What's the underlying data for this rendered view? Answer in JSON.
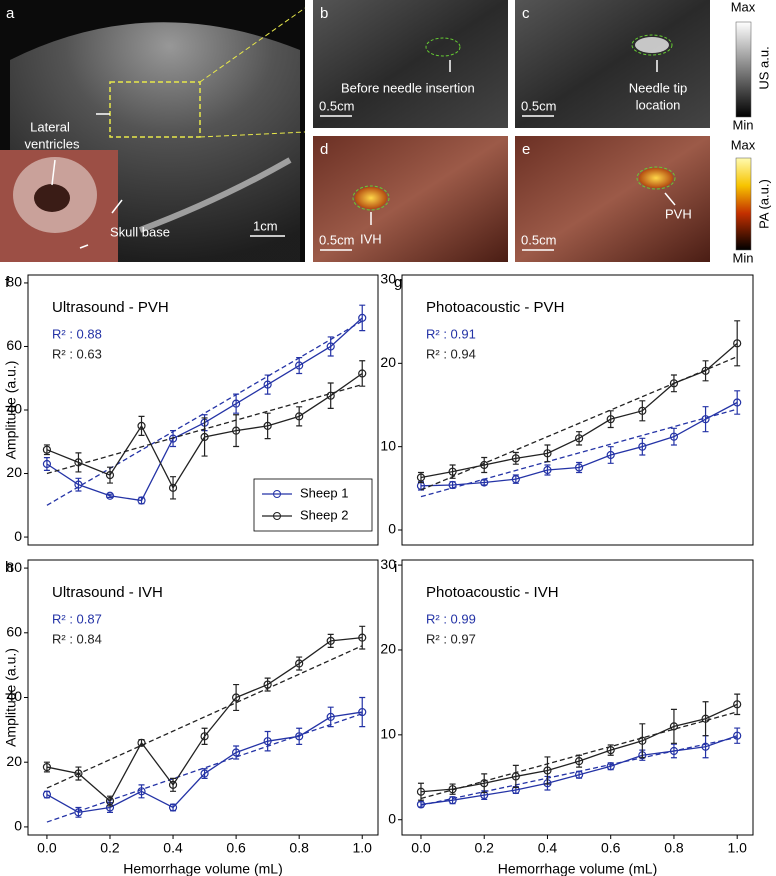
{
  "image_panels": {
    "a": {
      "label": "a",
      "lateral_ventricles": [
        "Lateral",
        "ventricles"
      ],
      "skull_base": "Skull base",
      "scale": "1cm"
    },
    "b": {
      "label": "b",
      "note": "Before needle insertion",
      "scale": "0.5cm"
    },
    "c": {
      "label": "c",
      "note": [
        "Needle tip",
        "location"
      ],
      "scale": "0.5cm"
    },
    "d": {
      "label": "d",
      "note": "IVH",
      "scale": "0.5cm"
    },
    "e": {
      "label": "e",
      "note": "PVH",
      "scale": "0.5cm"
    }
  },
  "colorbars": [
    {
      "max": "Max",
      "min": "Min",
      "label": "US a.u."
    },
    {
      "max": "Max",
      "min": "Min",
      "label": "PA (a.u.)"
    }
  ],
  "chart_data": [
    {
      "type": "line",
      "panel": "f",
      "title": "Ultrasound - PVH",
      "ylabel": "Amplitude (a.u.)",
      "x": [
        0,
        0.1,
        0.2,
        0.3,
        0.4,
        0.5,
        0.6,
        0.7,
        0.8,
        0.9,
        1.0
      ],
      "xlim": [
        -0.06,
        1.05
      ],
      "ylim": [
        -2.5,
        82.5
      ],
      "yticks": [
        0,
        20,
        40,
        60,
        80
      ],
      "legend": "lower right",
      "series": [
        {
          "name": "Sheep 1",
          "color": "#2433a6",
          "r2_label": "R² : 0.88",
          "values": [
            23,
            16.5,
            13,
            11.5,
            31,
            36,
            42,
            48,
            54,
            60,
            69
          ],
          "errors": [
            2,
            2,
            0.5,
            1,
            2.5,
            2.5,
            3,
            3,
            2.5,
            3,
            4
          ],
          "fit": [
            10,
            68
          ]
        },
        {
          "name": "Sheep 2",
          "color": "#222222",
          "r2_label": "R² : 0.63",
          "values": [
            27.5,
            23.5,
            19.5,
            35,
            15.5,
            31.5,
            33.5,
            35,
            38,
            44.5,
            51.5
          ],
          "errors": [
            1.5,
            3,
            2.5,
            3,
            3.5,
            6,
            5,
            4,
            3,
            4,
            4
          ],
          "fit": [
            20,
            48
          ]
        }
      ]
    },
    {
      "type": "line",
      "panel": "g",
      "title": "Photoacoustic - PVH",
      "x": [
        0,
        0.1,
        0.2,
        0.3,
        0.4,
        0.5,
        0.6,
        0.7,
        0.8,
        0.9,
        1.0
      ],
      "xlim": [
        -0.06,
        1.05
      ],
      "ylim": [
        -1.8,
        30.6
      ],
      "yticks": [
        0,
        10,
        20,
        30
      ],
      "series": [
        {
          "color": "#2433a6",
          "r2_label": "R² : 0.91",
          "values": [
            5.3,
            5.4,
            5.7,
            6.1,
            7.2,
            7.5,
            9,
            10,
            11.2,
            13.3,
            15.3
          ],
          "errors": [
            0.5,
            0.4,
            0.3,
            0.5,
            0.6,
            0.6,
            1,
            1,
            1,
            1.5,
            1.4
          ],
          "fit": [
            4,
            14.5
          ]
        },
        {
          "color": "#222222",
          "r2_label": "R² : 0.94",
          "values": [
            6.3,
            7,
            7.8,
            8.6,
            9.2,
            11,
            13.3,
            14.3,
            17.6,
            19.1,
            22.4
          ],
          "errors": [
            0.6,
            0.8,
            0.9,
            0.7,
            1,
            0.8,
            1,
            1.2,
            1,
            1.2,
            2.7
          ],
          "fit": [
            4.8,
            20.8
          ]
        }
      ]
    },
    {
      "type": "line",
      "panel": "h",
      "title": "Ultrasound - IVH",
      "ylabel": "Amplitude (a.u.)",
      "xlabel": "Hemorrhage volume (mL)",
      "x": [
        0,
        0.1,
        0.2,
        0.3,
        0.4,
        0.5,
        0.6,
        0.7,
        0.8,
        0.9,
        1.0
      ],
      "xlim": [
        -0.06,
        1.05
      ],
      "xticks": [
        {
          "value": 0,
          "label": "0.0"
        },
        0.2,
        0.4,
        0.6,
        0.8,
        {
          "value": 1,
          "label": "1.0"
        }
      ],
      "ylim": [
        -2.5,
        82.5
      ],
      "yticks": [
        0,
        20,
        40,
        60,
        80
      ],
      "series": [
        {
          "color": "#2433a6",
          "r2_label": "R² : 0.87",
          "values": [
            10,
            4.5,
            6,
            11,
            6,
            16.5,
            23,
            26.5,
            28,
            34,
            35.5
          ],
          "errors": [
            1,
            1.5,
            1.5,
            2,
            1,
            1.5,
            2,
            3,
            2.5,
            3,
            4.5
          ],
          "fit": [
            1.5,
            35
          ]
        },
        {
          "color": "#222222",
          "r2_label": "R² : 0.84",
          "values": [
            18.5,
            16.5,
            8,
            26,
            13,
            28,
            40,
            44,
            50.5,
            57.5,
            58.5
          ],
          "errors": [
            1.5,
            2,
            1.5,
            1,
            2,
            2.5,
            4,
            2,
            2,
            2,
            3.5
          ],
          "fit": [
            12,
            56
          ]
        }
      ]
    },
    {
      "type": "line",
      "panel": "i",
      "title": "Photoacoustic - IVH",
      "xlabel": "Hemorrhage volume (mL)",
      "x": [
        0,
        0.1,
        0.2,
        0.3,
        0.4,
        0.5,
        0.6,
        0.7,
        0.8,
        0.9,
        1.0
      ],
      "xlim": [
        -0.06,
        1.05
      ],
      "xticks": [
        {
          "value": 0,
          "label": "0.0"
        },
        0.2,
        0.4,
        0.6,
        0.8,
        {
          "value": 1,
          "label": "1.0"
        }
      ],
      "ylim": [
        -1.8,
        30.6
      ],
      "yticks": [
        0,
        10,
        20,
        30
      ],
      "series": [
        {
          "color": "#2433a6",
          "r2_label": "R² : 0.99",
          "values": [
            1.8,
            2.3,
            2.9,
            3.5,
            4.3,
            5.3,
            6.3,
            7.6,
            8.1,
            8.6,
            9.9
          ],
          "errors": [
            0.3,
            0.4,
            0.5,
            0.4,
            0.8,
            0.4,
            0.4,
            0.6,
            0.8,
            1.3,
            0.9
          ],
          "fit": [
            1.7,
            9.7
          ]
        },
        {
          "color": "#222222",
          "r2_label": "R² : 0.97",
          "values": [
            3.3,
            3.6,
            4.3,
            5.1,
            5.8,
            6.9,
            8.2,
            9.3,
            11,
            11.9,
            13.6
          ],
          "errors": [
            1,
            0.6,
            1.1,
            1.3,
            1.6,
            0.7,
            0.6,
            2,
            2,
            2,
            1.2
          ],
          "fit": [
            2.5,
            12.7
          ]
        }
      ]
    }
  ]
}
